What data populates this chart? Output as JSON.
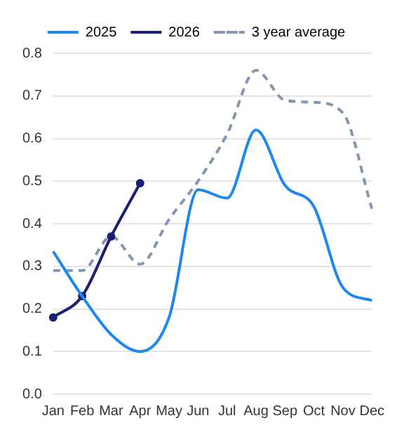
{
  "chart_data": {
    "type": "line",
    "categories": [
      "Jan",
      "Feb",
      "Mar",
      "Apr",
      "May",
      "Jun",
      "Jul",
      "Aug",
      "Sep",
      "Oct",
      "Nov",
      "Dec"
    ],
    "series": [
      {
        "name": "2025",
        "color": "#1e88f0",
        "marker": "none",
        "line_style": "solid",
        "values": [
          0.335,
          0.23,
          0.14,
          0.1,
          0.18,
          0.48,
          0.46,
          0.62,
          0.49,
          0.44,
          0.25,
          0.22
        ]
      },
      {
        "name": "2026",
        "color": "#1c2070",
        "marker": "circle",
        "line_style": "solid",
        "values": [
          0.18,
          0.23,
          0.37,
          0.495,
          null,
          null,
          null,
          null,
          null,
          null,
          null,
          null
        ]
      },
      {
        "name": "3 year average",
        "color": "#8496b0",
        "marker": "none",
        "line_style": "dashed",
        "values": [
          0.29,
          0.29,
          0.37,
          0.305,
          0.41,
          0.5,
          0.61,
          0.76,
          0.69,
          0.685,
          0.66,
          0.435
        ]
      }
    ],
    "ylim": [
      0,
      0.8
    ],
    "yticks": [
      {
        "value": 0,
        "label": "0.0"
      },
      0.1,
      0.2,
      0.3,
      0.4,
      0.5,
      0.6,
      0.7,
      0.8
    ],
    "grid": "y",
    "legend": "top"
  }
}
